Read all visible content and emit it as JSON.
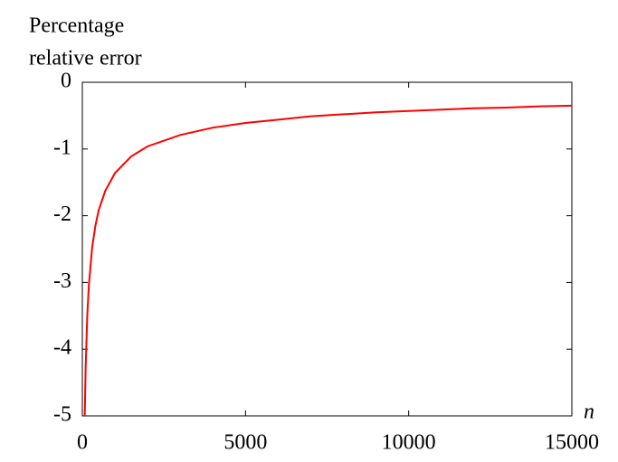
{
  "chart_data": {
    "type": "line",
    "y_label": [
      "Percentage",
      "relative error"
    ],
    "x_label": "n",
    "x": [
      74,
      100,
      150,
      200,
      300,
      400,
      500,
      700,
      1000,
      1500,
      2000,
      3000,
      4000,
      5000,
      6000,
      7000,
      8000,
      9000,
      10000,
      11000,
      12000,
      13000,
      14000,
      15000
    ],
    "values": [
      -5.0,
      -4.3,
      -3.51,
      -3.04,
      -2.48,
      -2.15,
      -1.92,
      -1.63,
      -1.36,
      -1.11,
      -0.96,
      -0.79,
      -0.68,
      -0.61,
      -0.56,
      -0.51,
      -0.48,
      -0.45,
      -0.43,
      -0.41,
      -0.39,
      -0.38,
      -0.36,
      -0.35
    ],
    "color": "#ff0000",
    "xlim": [
      0,
      15000
    ],
    "xticks": [
      0,
      5000,
      10000,
      15000
    ],
    "ylim": [
      -5,
      0
    ],
    "yticks": [
      -5,
      -4,
      -3,
      -2,
      -1,
      0
    ],
    "grid": false
  }
}
